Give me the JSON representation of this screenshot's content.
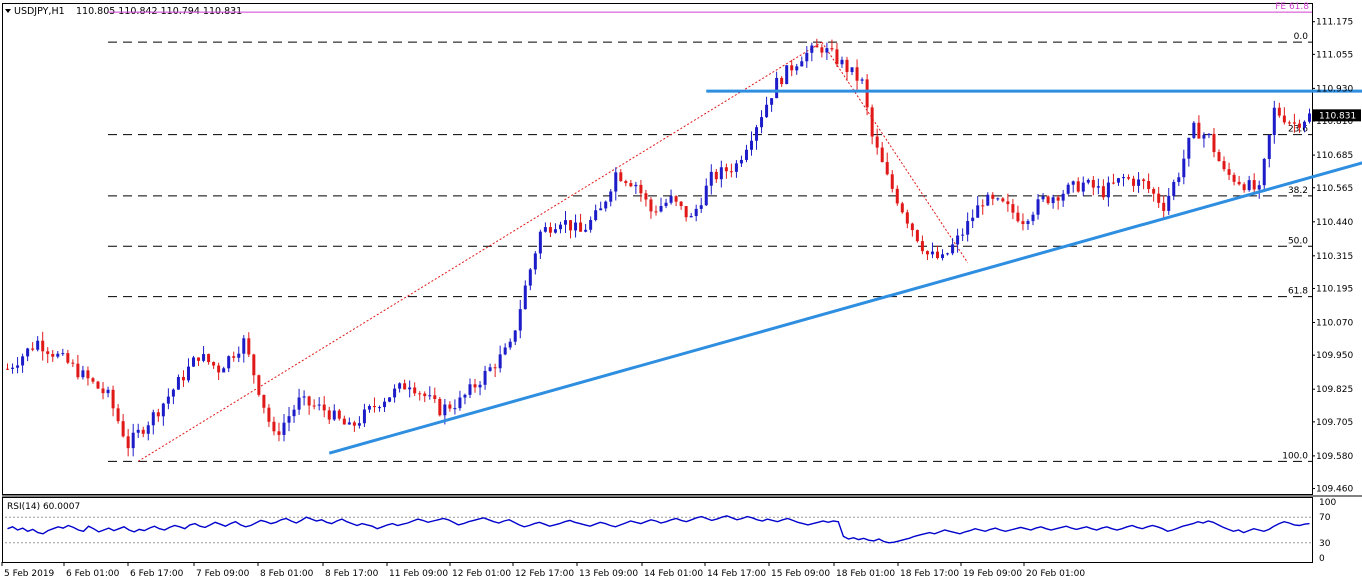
{
  "header": {
    "symbol_timeframe": "USDJPY,H1",
    "ohlc": "110.805 110.842 110.794 110.831"
  },
  "colors": {
    "bull_candle": "#1c1cc8",
    "bear_candle": "#e01818",
    "trendline": "#2e8ee0",
    "fib_expansion": "#d040d0",
    "rsi_line": "#0000cc",
    "price_label_bg": "#000000"
  },
  "chart_data": [
    {
      "type": "candlestick",
      "symbol": "USDJPY",
      "timeframe": "H1",
      "ylim": [
        109.44,
        111.24
      ],
      "y_ticks": [
        "111.175",
        "111.055",
        "110.930",
        "110.810",
        "110.685",
        "110.565",
        "110.440",
        "110.315",
        "110.195",
        "110.070",
        "109.950",
        "109.825",
        "109.705",
        "109.580",
        "109.460"
      ],
      "current_price": "110.831",
      "x_labels": [
        "5 Feb 2019",
        "6 Feb 01:00",
        "6 Feb 17:00",
        "7 Feb 09:00",
        "8 Feb 01:00",
        "8 Feb 17:00",
        "11 Feb 09:00",
        "12 Feb 01:00",
        "12 Feb 17:00",
        "13 Feb 09:00",
        "14 Feb 01:00",
        "14 Feb 17:00",
        "15 Feb 09:00",
        "18 Feb 01:00",
        "18 Feb 17:00",
        "19 Feb 09:00",
        "20 Feb 01:00"
      ],
      "close_path": [
        [
          0,
          109.9
        ],
        [
          6,
          110.0
        ],
        [
          12,
          109.92
        ],
        [
          20,
          109.8
        ],
        [
          24,
          109.62
        ],
        [
          30,
          109.75
        ],
        [
          38,
          109.95
        ],
        [
          42,
          109.9
        ],
        [
          47,
          110.0
        ],
        [
          53,
          109.65
        ],
        [
          58,
          109.78
        ],
        [
          63,
          109.75
        ],
        [
          68,
          109.68
        ],
        [
          74,
          109.78
        ],
        [
          80,
          109.85
        ],
        [
          86,
          109.75
        ],
        [
          90,
          109.78
        ],
        [
          96,
          109.9
        ],
        [
          100,
          109.98
        ],
        [
          103,
          110.2
        ],
        [
          106,
          110.4
        ],
        [
          110,
          110.45
        ],
        [
          114,
          110.4
        ],
        [
          118,
          110.48
        ],
        [
          121,
          110.62
        ],
        [
          125,
          110.58
        ],
        [
          128,
          110.48
        ],
        [
          132,
          110.52
        ],
        [
          136,
          110.45
        ],
        [
          140,
          110.6
        ],
        [
          145,
          110.65
        ],
        [
          149,
          110.8
        ],
        [
          153,
          110.95
        ],
        [
          158,
          111.05
        ],
        [
          162,
          111.08
        ],
        [
          166,
          111.02
        ],
        [
          170,
          110.95
        ],
        [
          172,
          110.75
        ],
        [
          175,
          110.6
        ],
        [
          179,
          110.45
        ],
        [
          183,
          110.32
        ],
        [
          186,
          110.3
        ],
        [
          190,
          110.4
        ],
        [
          194,
          110.52
        ],
        [
          198,
          110.5
        ],
        [
          202,
          110.45
        ],
        [
          206,
          110.52
        ],
        [
          210,
          110.55
        ],
        [
          214,
          110.58
        ],
        [
          218,
          110.55
        ],
        [
          222,
          110.6
        ],
        [
          226,
          110.58
        ],
        [
          230,
          110.5
        ],
        [
          233,
          110.62
        ],
        [
          236,
          110.78
        ],
        [
          239,
          110.75
        ],
        [
          242,
          110.62
        ],
        [
          246,
          110.58
        ],
        [
          249,
          110.55
        ],
        [
          252,
          110.85
        ],
        [
          256,
          110.8
        ],
        [
          259,
          110.83
        ]
      ],
      "horizontal_levels": [
        {
          "label": "0.0",
          "price": 111.1
        },
        {
          "label": "23.6",
          "price": 110.76
        },
        {
          "label": "38.2",
          "price": 110.535
        },
        {
          "label": "50.0",
          "price": 110.35
        },
        {
          "label": "61.8",
          "price": 110.165
        },
        {
          "label": "100.0",
          "price": 109.56
        },
        {
          "label": "FE 61.8",
          "price": 111.21
        }
      ],
      "resistance_line": {
        "from": [
          139,
          110.92
        ],
        "to": [
          276,
          110.92
        ]
      },
      "support_trendline": {
        "from": [
          64,
          109.59
        ],
        "to": [
          276,
          110.69
        ]
      },
      "diagonal_dotted": [
        {
          "from": [
            26,
            109.56
          ],
          "to": [
            162,
            111.1
          ]
        },
        {
          "from": [
            162,
            111.1
          ],
          "to": [
            191,
            110.29
          ]
        }
      ]
    },
    {
      "type": "line",
      "title": "RSI(14) 60.0007",
      "ylim": [
        0,
        100
      ],
      "y_ticks": [
        "100",
        "70",
        "30",
        "0"
      ],
      "levels": [
        70,
        30
      ],
      "series": [
        {
          "name": "RSI(14)",
          "values": [
            52,
            55,
            50,
            53,
            48,
            51,
            46,
            44,
            49,
            52,
            55,
            53,
            57,
            54,
            50,
            48,
            56,
            52,
            47,
            50,
            53,
            49,
            52,
            55,
            50,
            47,
            51,
            49,
            53,
            56,
            52,
            50,
            54,
            57,
            55,
            52,
            58,
            60,
            56,
            54,
            58,
            62,
            59,
            56,
            60,
            63,
            58,
            55,
            57,
            61,
            65,
            63,
            60,
            62,
            66,
            68,
            64,
            61,
            65,
            70,
            67,
            64,
            66,
            62,
            60,
            64,
            67,
            63,
            60,
            57,
            60,
            58,
            56,
            52,
            55,
            58,
            60,
            57,
            59,
            61,
            64,
            67,
            65,
            62,
            64,
            66,
            68,
            66,
            62,
            58,
            60,
            63,
            65,
            67,
            69,
            66,
            63,
            61,
            64,
            66,
            62,
            58,
            55,
            57,
            60,
            62,
            59,
            56,
            58,
            60,
            63,
            65,
            62,
            60,
            58,
            56,
            59,
            62,
            60,
            57,
            55,
            58,
            61,
            64,
            62,
            60,
            63,
            66,
            64,
            61,
            63,
            66,
            68,
            65,
            63,
            66,
            69,
            71,
            68,
            65,
            67,
            70,
            72,
            69,
            66,
            68,
            71,
            69,
            66,
            64,
            67,
            65,
            63,
            66,
            68,
            65,
            62,
            60,
            58,
            60,
            62,
            64,
            62,
            64,
            63,
            40,
            36,
            38,
            35,
            37,
            34,
            33,
            36,
            32,
            30,
            31,
            33,
            35,
            37,
            40,
            42,
            44,
            46,
            44,
            47,
            50,
            48,
            46,
            44,
            47,
            49,
            52,
            50,
            48,
            51,
            53,
            50,
            48,
            50,
            52,
            54,
            52,
            50,
            53,
            55,
            52,
            50,
            52,
            54,
            56,
            53,
            51,
            53,
            55,
            52,
            50,
            53,
            55,
            52,
            50,
            52,
            55,
            57,
            54,
            52,
            55,
            57,
            55,
            52,
            48,
            50,
            53,
            56,
            58,
            60,
            63,
            61,
            64,
            62,
            58,
            54,
            51,
            48,
            50,
            46,
            49,
            52,
            50,
            48,
            51,
            56,
            60,
            63,
            61,
            58,
            57,
            59,
            60
          ]
        }
      ]
    }
  ]
}
